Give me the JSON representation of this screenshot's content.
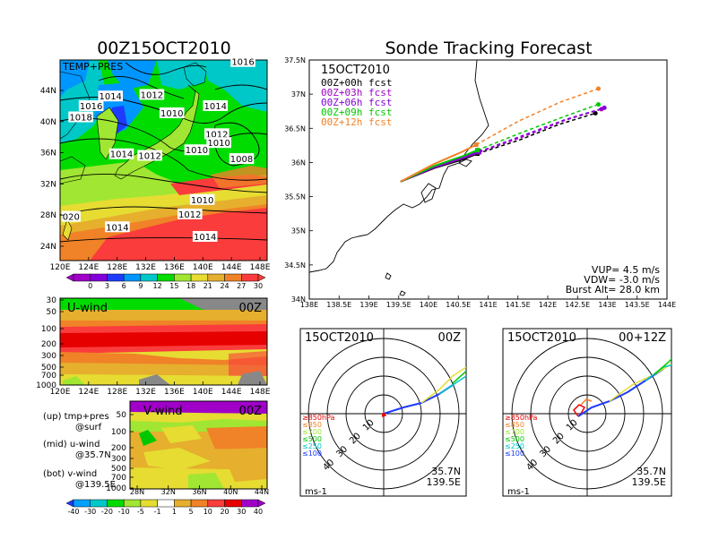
{
  "left_title": "00Z15OCT2010",
  "right_title": "Sonde Tracking Forecast",
  "colors": {
    "temp": [
      "#a000c8",
      "#8200dc",
      "#1e3cff",
      "#0096ff",
      "#00c8c8",
      "#00dc00",
      "#a0e632",
      "#e6dc32",
      "#e6af2d",
      "#f08228",
      "#fa3c3c"
    ],
    "wind": [
      "#00a0ff",
      "#00c8c8",
      "#00dc00",
      "#a0e632",
      "#e6dc32",
      "#ffffff",
      "#e6af2d",
      "#f08228",
      "#fa3c3c",
      "#e60000",
      "#a000c8"
    ],
    "fc": [
      "#000000",
      "#a000c8",
      "#8200dc",
      "#00c800",
      "#f08228"
    ]
  },
  "chart_data": [
    {
      "type": "heatmap",
      "panel": "temp_pres_map",
      "label": "TEMP+PRES",
      "x_ticks": [
        "120E",
        "124E",
        "128E",
        "132E",
        "136E",
        "140E",
        "144E",
        "148E"
      ],
      "y_ticks": [
        "24N",
        "28N",
        "32N",
        "36N",
        "40N",
        "44N"
      ],
      "xlim": [
        120,
        150
      ],
      "ylim": [
        22,
        47
      ],
      "colorbar": [
        "0",
        "3",
        "6",
        "9",
        "12",
        "15",
        "18",
        "21",
        "24",
        "27",
        "30"
      ],
      "isobar_labels": [
        {
          "text": "1016",
          "lon": 146.5,
          "lat": 46.7
        },
        {
          "text": "1014",
          "lon": 127.3,
          "lat": 42.4
        },
        {
          "text": "1012",
          "lon": 133.3,
          "lat": 42.6
        },
        {
          "text": "1016",
          "lon": 124.5,
          "lat": 41.2
        },
        {
          "text": "1014",
          "lon": 142.5,
          "lat": 41.2
        },
        {
          "text": "1018",
          "lon": 123.0,
          "lat": 39.8
        },
        {
          "text": "1010",
          "lon": 136.2,
          "lat": 40.3
        },
        {
          "text": "1012",
          "lon": 142.7,
          "lat": 37.7
        },
        {
          "text": "1010",
          "lon": 143.0,
          "lat": 36.6
        },
        {
          "text": "1014",
          "lon": 128.9,
          "lat": 35.2
        },
        {
          "text": "1012",
          "lon": 133.0,
          "lat": 35.0
        },
        {
          "text": "1010",
          "lon": 139.8,
          "lat": 35.7
        },
        {
          "text": "1008",
          "lon": 146.3,
          "lat": 34.6
        },
        {
          "text": "1010",
          "lon": 140.6,
          "lat": 29.5
        },
        {
          "text": "1012",
          "lon": 138.8,
          "lat": 27.7
        },
        {
          "text": "020",
          "lon": 121.6,
          "lat": 27.4
        },
        {
          "text": "1014",
          "lon": 128.3,
          "lat": 26.1
        },
        {
          "text": "1014",
          "lon": 141.0,
          "lat": 24.9
        }
      ]
    },
    {
      "type": "heatmap",
      "panel": "u_wind_section",
      "label": "U-wind",
      "time": "00Z",
      "x_ticks": [
        "120E",
        "124E",
        "128E",
        "132E",
        "136E",
        "140E",
        "144E",
        "148E"
      ],
      "y_ticks": [
        "30",
        "50",
        "100",
        "200",
        "300",
        "500",
        "700",
        "1000"
      ]
    },
    {
      "type": "heatmap",
      "panel": "v_wind_section",
      "label": "V-wind",
      "time": "00Z",
      "x_ticks": [
        "28N",
        "32N",
        "36N",
        "40N",
        "44N"
      ],
      "y_ticks": [
        "50",
        "100",
        "200",
        "300",
        "500",
        "700",
        "1000"
      ],
      "colorbar": [
        "-40",
        "-30",
        "-20",
        "-10",
        "-5",
        "-1",
        "1",
        "5",
        "10",
        "20",
        "30",
        "40"
      ]
    },
    {
      "type": "line",
      "panel": "sonde_tracking",
      "date": "15OCT2010",
      "x_ticks": [
        "138E",
        "138.5E",
        "139E",
        "139.5E",
        "140E",
        "140.5E",
        "141E",
        "141.5E",
        "142E",
        "142.5E",
        "143E",
        "143.5E",
        "144E"
      ],
      "y_ticks": [
        "34N",
        "34.5N",
        "35N",
        "35.5N",
        "36N",
        "36.5N",
        "37N",
        "37.5N"
      ],
      "xlim": [
        138,
        144
      ],
      "ylim": [
        34,
        37.5
      ],
      "series": [
        {
          "name": "00Z+00h fcst",
          "line": "solid",
          "burst": "dashed",
          "x": [
            139.53,
            140.1,
            140.6,
            140.82
          ],
          "y": [
            35.72,
            35.92,
            36.05,
            36.13
          ],
          "burst_x": [
            140.82,
            141.5,
            142.2,
            142.8
          ],
          "burst_y": [
            36.13,
            36.32,
            36.56,
            36.72
          ]
        },
        {
          "name": "00Z+03h fcst",
          "line": "solid",
          "burst": "dashed",
          "x": [
            139.53,
            140.1,
            140.6,
            140.85
          ],
          "y": [
            35.72,
            35.93,
            36.07,
            36.15
          ],
          "burst_x": [
            140.85,
            141.6,
            142.3,
            142.9
          ],
          "burst_y": [
            36.15,
            36.38,
            36.62,
            36.78
          ]
        },
        {
          "name": "00Z+06h fcst",
          "line": "solid",
          "burst": "dashed",
          "x": [
            139.53,
            140.1,
            140.6,
            140.85
          ],
          "y": [
            35.72,
            35.94,
            36.08,
            36.16
          ],
          "burst_x": [
            140.85,
            141.6,
            142.3,
            142.95
          ],
          "burst_y": [
            36.16,
            36.4,
            36.63,
            36.8
          ]
        },
        {
          "name": "00Z+09h fcst",
          "line": "solid",
          "burst": "dashed",
          "x": [
            139.53,
            140.1,
            140.6,
            140.82
          ],
          "y": [
            35.72,
            35.95,
            36.1,
            36.18
          ],
          "burst_x": [
            140.82,
            141.6,
            142.3,
            142.85
          ],
          "burst_y": [
            36.18,
            36.45,
            36.68,
            36.85
          ]
        },
        {
          "name": "00Z+12h fcst",
          "line": "solid",
          "burst": "dashed",
          "x": [
            139.53,
            140.1,
            140.55,
            140.8
          ],
          "y": [
            35.72,
            35.98,
            36.15,
            36.26
          ],
          "burst_x": [
            140.8,
            141.5,
            142.2,
            142.85
          ],
          "burst_y": [
            36.26,
            36.6,
            36.88,
            37.08
          ]
        }
      ],
      "params": [
        "VUP= 4.5 m/s",
        "VDW= -3.0 m/s",
        "Burst Alt= 28.0 km"
      ]
    },
    {
      "type": "line",
      "panel": "hodograph_00z",
      "date": "15OCT2010",
      "time": "00Z",
      "ring_labels": [
        "10",
        "20",
        "30",
        "40"
      ],
      "levels": [
        {
          "name": "≥850hPa",
          "color": "#e60000"
        },
        {
          "name": "≤850",
          "color": "#f08228"
        },
        {
          "name": "≤700",
          "color": "#a0e632"
        },
        {
          "name": "≤500",
          "color": "#00c800"
        },
        {
          "name": "≤250",
          "color": "#00c8c8"
        },
        {
          "name": "≤100",
          "color": "#1e3cff"
        }
      ],
      "location": [
        "35.7N",
        "139.5E"
      ],
      "units": "ms-1"
    },
    {
      "type": "line",
      "panel": "hodograph_12z",
      "date": "15OCT2010",
      "time": "00+12Z",
      "ring_labels": [
        "10",
        "20",
        "30",
        "40"
      ],
      "location": [
        "35.7N",
        "139.5E"
      ],
      "units": "ms-1"
    }
  ],
  "notes": [
    {
      "line1": "(up) tmp+pres",
      "line2": "@surf"
    },
    {
      "line1": "(mid) u-wind",
      "line2": "@35.7N"
    },
    {
      "line1": "(bot) v-wind",
      "line2": "@139.5E"
    }
  ]
}
